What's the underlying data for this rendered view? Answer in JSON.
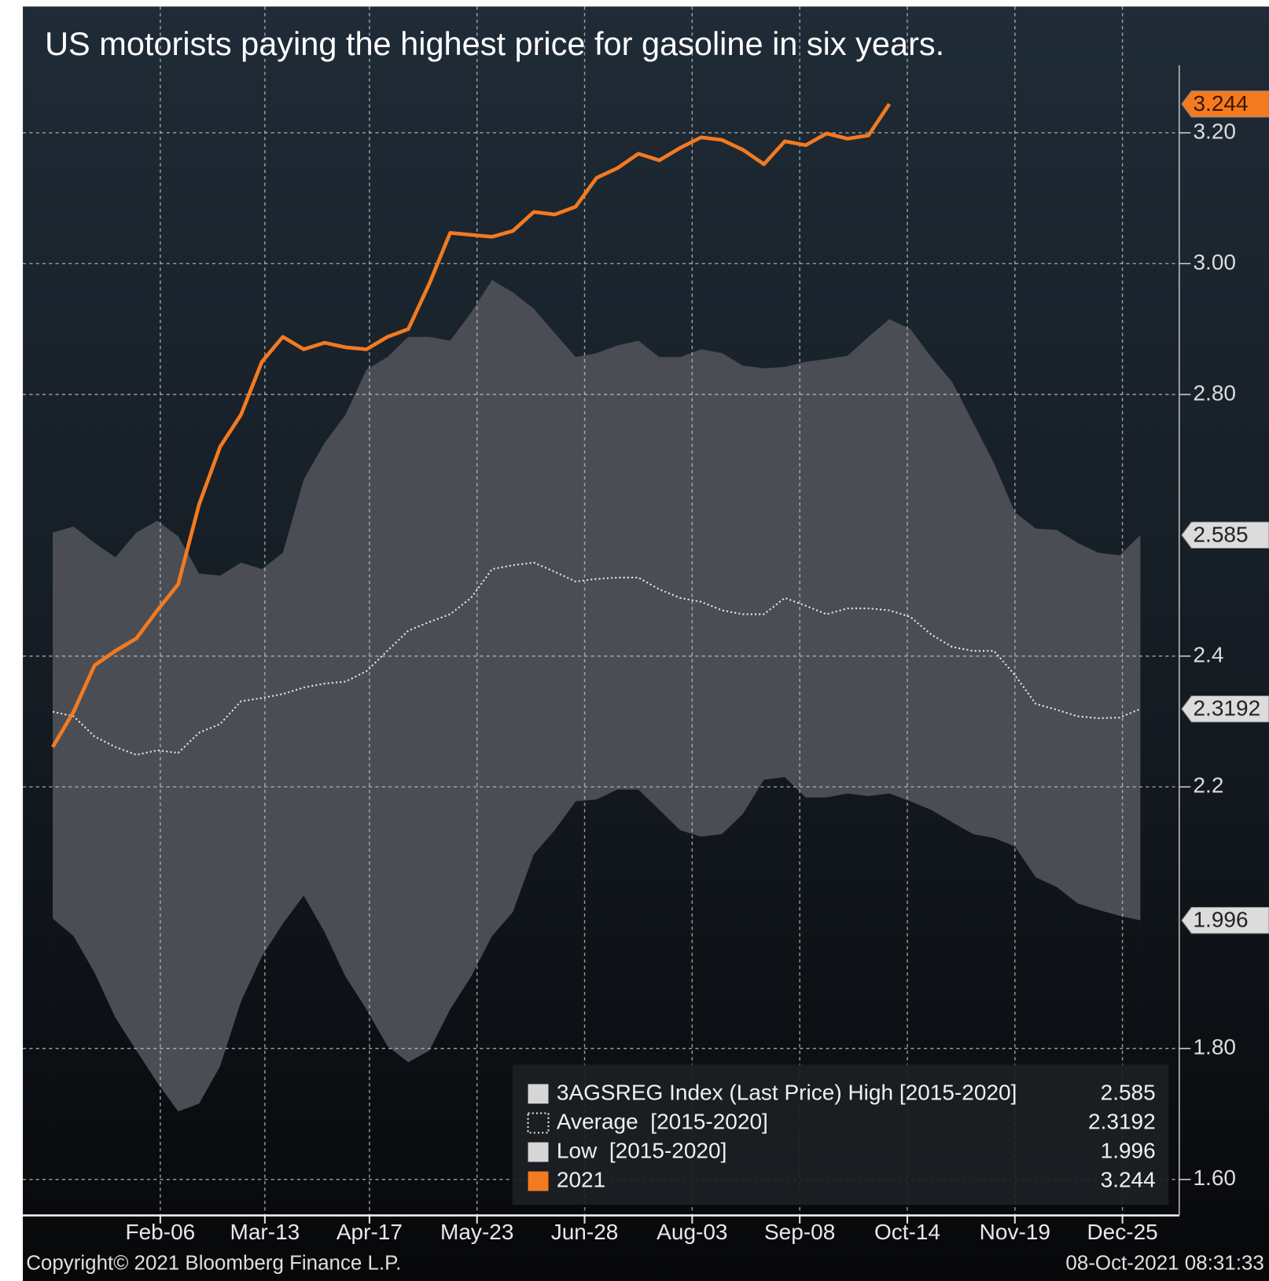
{
  "chart_data": {
    "type": "line",
    "title": "US motorists paying the highest price for gasoline in six years.",
    "footer_left": "Copyright© 2021 Bloomberg Finance L.P.",
    "footer_right": "08-Oct-2021 08:31:33",
    "x": [
      0,
      7,
      14,
      21,
      28,
      35,
      42,
      49,
      56,
      63,
      70,
      77,
      84,
      91,
      98,
      105,
      112,
      119,
      126,
      133,
      140,
      147,
      154,
      161,
      168,
      175,
      182,
      189,
      196,
      203,
      210,
      217,
      224,
      231,
      238,
      245,
      252,
      259,
      266,
      273,
      280,
      287,
      294,
      301,
      308,
      315,
      322,
      329,
      336,
      343,
      350,
      357,
      364
    ],
    "xlim": [
      -10,
      377
    ],
    "xticks": [
      {
        "value": 36,
        "label": "Feb-06"
      },
      {
        "value": 71,
        "label": "Mar-13"
      },
      {
        "value": 106,
        "label": "Apr-17"
      },
      {
        "value": 142,
        "label": "May-23"
      },
      {
        "value": 178,
        "label": "Jun-28"
      },
      {
        "value": 214,
        "label": "Aug-03"
      },
      {
        "value": 250,
        "label": "Sep-08"
      },
      {
        "value": 286,
        "label": "Oct-14"
      },
      {
        "value": 322,
        "label": "Nov-19"
      },
      {
        "value": 358,
        "label": "Dec-25"
      }
    ],
    "ylim": [
      1.545,
      3.393
    ],
    "yticks": [
      {
        "value": 1.6,
        "label": "1.60"
      },
      {
        "value": 1.8,
        "label": "1.80"
      },
      2.2,
      2.4,
      {
        "value": 2.8,
        "label": "2.80"
      },
      {
        "value": 3.0,
        "label": "3.00"
      },
      {
        "value": 3.2,
        "label": "3.20"
      }
    ],
    "grid": true,
    "legend": "bottom-right",
    "series": [
      {
        "name": "3AGSREG Index (Last Price) High [2015-2020]",
        "style": "area",
        "color": "#4a4e54",
        "legend_color": "#d6d6d6",
        "last_label": "2.585",
        "values": [
          2.589,
          2.598,
          2.573,
          2.551,
          2.589,
          2.607,
          2.583,
          2.526,
          2.523,
          2.543,
          2.533,
          2.558,
          2.67,
          2.726,
          2.769,
          2.838,
          2.857,
          2.888,
          2.888,
          2.882,
          2.925,
          2.975,
          2.956,
          2.931,
          2.894,
          2.857,
          2.863,
          2.875,
          2.882,
          2.857,
          2.857,
          2.869,
          2.863,
          2.844,
          2.84,
          2.842,
          2.85,
          2.854,
          2.859,
          2.888,
          2.915,
          2.9,
          2.857,
          2.819,
          2.757,
          2.695,
          2.62,
          2.595,
          2.593,
          2.573,
          2.558,
          2.554,
          2.585
        ]
      },
      {
        "name": "Average  [2015-2020]",
        "style": "dotted",
        "color": "#e8e8e8",
        "legend_color": "#e8e8e8",
        "last_label": "2.3192",
        "values": [
          2.315,
          2.308,
          2.277,
          2.261,
          2.249,
          2.256,
          2.252,
          2.283,
          2.296,
          2.331,
          2.336,
          2.342,
          2.352,
          2.358,
          2.361,
          2.377,
          2.408,
          2.439,
          2.452,
          2.464,
          2.489,
          2.533,
          2.539,
          2.543,
          2.529,
          2.514,
          2.518,
          2.52,
          2.52,
          2.502,
          2.489,
          2.483,
          2.47,
          2.464,
          2.464,
          2.489,
          2.477,
          2.464,
          2.473,
          2.473,
          2.47,
          2.46,
          2.433,
          2.414,
          2.408,
          2.408,
          2.371,
          2.327,
          2.318,
          2.308,
          2.305,
          2.306,
          2.3192
        ]
      },
      {
        "name": "Low  [2015-2020]",
        "style": "floor",
        "color": "background",
        "legend_color": "#d6d6d6",
        "last_label": "1.996",
        "values": [
          1.999,
          1.972,
          1.916,
          1.847,
          1.797,
          1.748,
          1.704,
          1.716,
          1.773,
          1.872,
          1.941,
          1.991,
          2.034,
          1.978,
          1.91,
          1.86,
          1.804,
          1.779,
          1.797,
          1.86,
          1.91,
          1.972,
          2.009,
          2.097,
          2.134,
          2.178,
          2.181,
          2.196,
          2.196,
          2.165,
          2.134,
          2.124,
          2.128,
          2.159,
          2.211,
          2.215,
          2.184,
          2.184,
          2.19,
          2.186,
          2.19,
          2.178,
          2.165,
          2.146,
          2.128,
          2.122,
          2.109,
          2.062,
          2.047,
          2.022,
          2.012,
          2.003,
          1.996
        ]
      },
      {
        "name": "2021",
        "style": "line",
        "color": "#f47a20",
        "legend_color": "#f47a20",
        "last_label": "3.244",
        "values": [
          2.261,
          2.315,
          2.386,
          2.408,
          2.427,
          2.47,
          2.51,
          2.632,
          2.72,
          2.769,
          2.85,
          2.888,
          2.869,
          2.879,
          2.872,
          2.869,
          2.888,
          2.9,
          2.969,
          3.047,
          3.044,
          3.041,
          3.05,
          3.079,
          3.075,
          3.087,
          3.131,
          3.146,
          3.168,
          3.158,
          3.177,
          3.193,
          3.189,
          3.174,
          3.152,
          3.187,
          3.181,
          3.199,
          3.191,
          3.196,
          3.244,
          null,
          null,
          null,
          null,
          null,
          null,
          null,
          null,
          null,
          null,
          null,
          null
        ]
      }
    ]
  }
}
